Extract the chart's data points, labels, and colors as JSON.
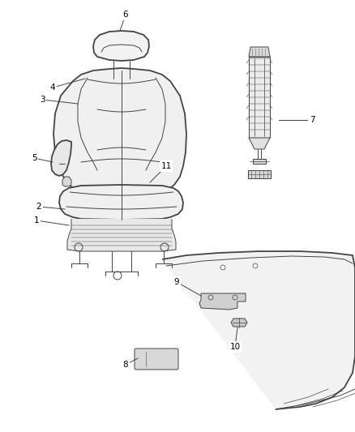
{
  "bg_color": "#ffffff",
  "line_color": "#444444",
  "label_color": "#000000",
  "fig_w": 4.38,
  "fig_h": 5.33,
  "dpi": 100
}
